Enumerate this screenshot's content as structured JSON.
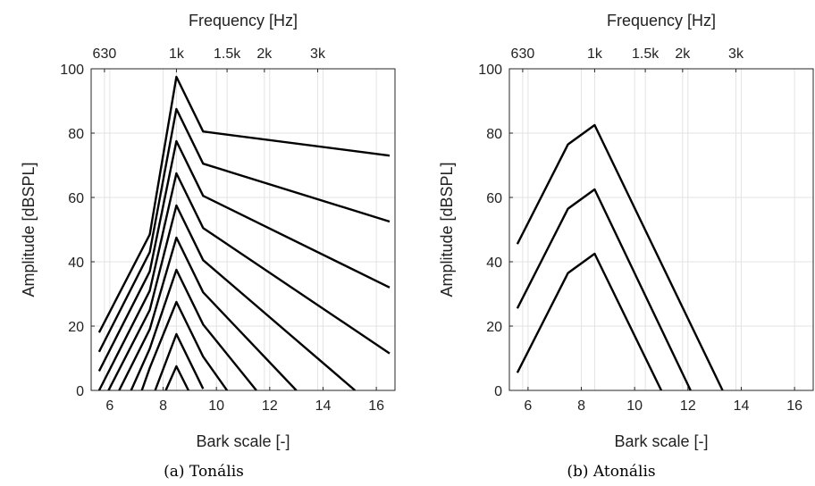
{
  "figure": {
    "panels": [
      {
        "caption": "(a)  Tonális"
      },
      {
        "caption": "(b)  Atonális"
      }
    ]
  },
  "chart_data": [
    {
      "type": "line",
      "title": "",
      "top_axis_label": "Frequency [Hz]",
      "top_ticks": [
        {
          "bark": 5.8,
          "label": "630"
        },
        {
          "bark": 8.5,
          "label": "1k"
        },
        {
          "bark": 10.4,
          "label": "1.5k"
        },
        {
          "bark": 11.8,
          "label": "2k"
        },
        {
          "bark": 13.8,
          "label": "3k"
        }
      ],
      "xlabel": "Bark scale [-]",
      "ylabel": "Amplitude [dBSPL]",
      "xlim": [
        5.3,
        16.7
      ],
      "ylim": [
        0,
        100
      ],
      "xticks": [
        6,
        8,
        10,
        12,
        14,
        16
      ],
      "yticks": [
        0,
        20,
        40,
        60,
        80,
        100
      ],
      "grid": true,
      "line_color": "#000000",
      "series": [
        {
          "values": [
            [
              5.6,
              18
            ],
            [
              7.5,
              48.5
            ],
            [
              8.5,
              97.5
            ],
            [
              9.5,
              80.5
            ],
            [
              16.5,
              73
            ]
          ]
        },
        {
          "values": [
            [
              5.6,
              12
            ],
            [
              7.5,
              43
            ],
            [
              8.5,
              87.5
            ],
            [
              9.5,
              70.5
            ],
            [
              16.5,
              52.5
            ]
          ]
        },
        {
          "values": [
            [
              5.6,
              6
            ],
            [
              7.5,
              37
            ],
            [
              8.5,
              77.5
            ],
            [
              9.5,
              60.5
            ],
            [
              16.5,
              32
            ]
          ]
        },
        {
          "values": [
            [
              5.6,
              0
            ],
            [
              7.5,
              31
            ],
            [
              8.5,
              67.5
            ],
            [
              9.5,
              50.5
            ],
            [
              16.5,
              11.5
            ]
          ]
        },
        {
          "values": [
            [
              5.95,
              0
            ],
            [
              7.5,
              25
            ],
            [
              8.5,
              57.5
            ],
            [
              9.5,
              40.5
            ],
            [
              15.2,
              0
            ]
          ]
        },
        {
          "values": [
            [
              6.35,
              0
            ],
            [
              7.5,
              19
            ],
            [
              8.5,
              47.5
            ],
            [
              9.5,
              30.5
            ],
            [
              13.0,
              0
            ]
          ]
        },
        {
          "values": [
            [
              6.8,
              0
            ],
            [
              7.5,
              13
            ],
            [
              8.5,
              37.5
            ],
            [
              9.5,
              20.5
            ],
            [
              11.5,
              0
            ]
          ]
        },
        {
          "values": [
            [
              7.2,
              0
            ],
            [
              7.5,
              7
            ],
            [
              8.5,
              27.5
            ],
            [
              9.5,
              10.5
            ],
            [
              10.4,
              0
            ]
          ]
        },
        {
          "values": [
            [
              7.7,
              0
            ],
            [
              8.5,
              17.5
            ],
            [
              9.5,
              0.5
            ]
          ]
        },
        {
          "values": [
            [
              8.1,
              0
            ],
            [
              8.5,
              7.5
            ],
            [
              8.95,
              0
            ]
          ]
        }
      ]
    },
    {
      "type": "line",
      "title": "",
      "top_axis_label": "Frequency [Hz]",
      "top_ticks": [
        {
          "bark": 5.8,
          "label": "630"
        },
        {
          "bark": 8.5,
          "label": "1k"
        },
        {
          "bark": 10.4,
          "label": "1.5k"
        },
        {
          "bark": 11.8,
          "label": "2k"
        },
        {
          "bark": 13.8,
          "label": "3k"
        }
      ],
      "xlabel": "Bark scale [-]",
      "ylabel": "Amplitude [dBSPL]",
      "xlim": [
        5.3,
        16.7
      ],
      "ylim": [
        0,
        100
      ],
      "xticks": [
        6,
        8,
        10,
        12,
        14,
        16
      ],
      "yticks": [
        0,
        20,
        40,
        60,
        80,
        100
      ],
      "grid": true,
      "line_color": "#000000",
      "series": [
        {
          "values": [
            [
              5.6,
              45.5
            ],
            [
              7.5,
              76.5
            ],
            [
              8.5,
              82.5
            ],
            [
              13.3,
              0
            ]
          ]
        },
        {
          "values": [
            [
              5.6,
              25.5
            ],
            [
              7.5,
              56.5
            ],
            [
              8.5,
              62.5
            ],
            [
              12.1,
              0
            ]
          ]
        },
        {
          "values": [
            [
              5.6,
              5.5
            ],
            [
              7.5,
              36.5
            ],
            [
              8.5,
              42.5
            ],
            [
              11.0,
              0
            ]
          ]
        }
      ]
    }
  ]
}
